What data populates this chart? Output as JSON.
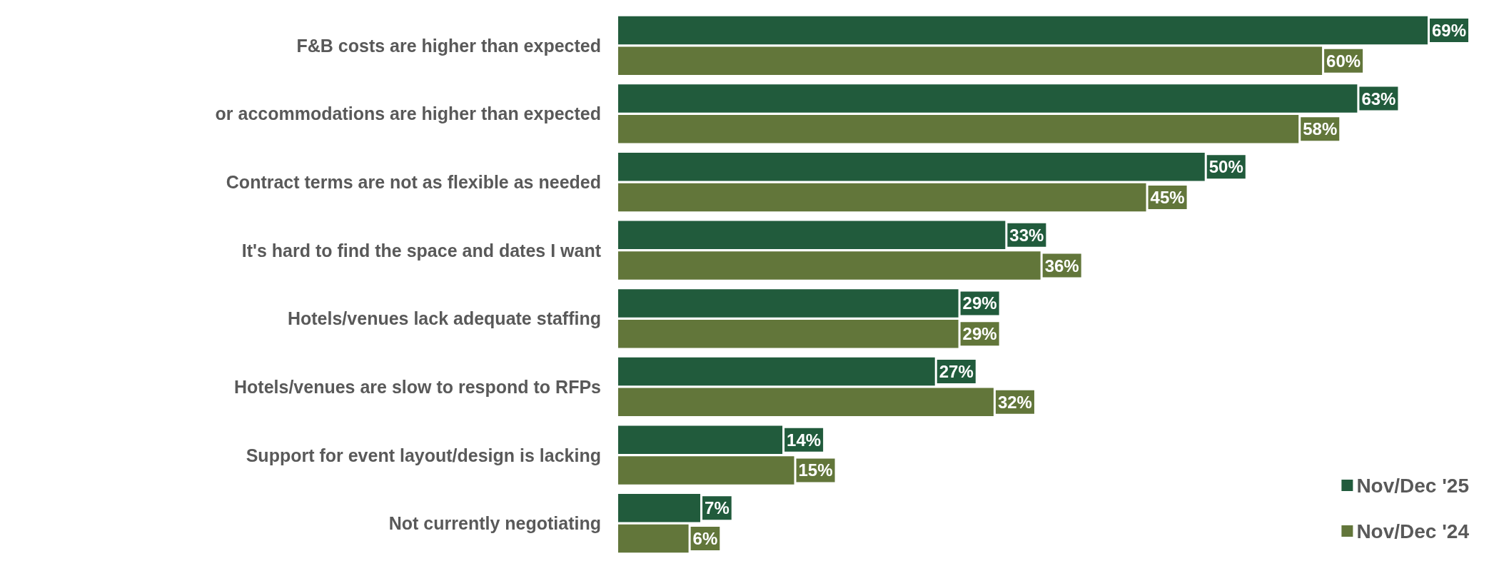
{
  "chart_data": {
    "type": "bar",
    "orientation": "horizontal",
    "legend": "bottom right",
    "categories": [
      "F&B costs are higher than expected",
      "or accommodations are higher than expected",
      "Contract terms are not as flexible as needed",
      "It's hard to find the space and dates I want",
      "Hotels/venues lack adequate staffing",
      "Hotels/venues are slow to respond to RFPs",
      "Support for event layout/design is lacking",
      "Not currently negotiating"
    ],
    "series": [
      {
        "name": "Nov/Dec '25",
        "color": "#215b3c",
        "values": [
          69,
          63,
          50,
          33,
          29,
          27,
          14,
          7
        ],
        "value_labels": [
          "69%",
          "63%",
          "50%",
          "33%",
          "29%",
          "27%",
          "14%",
          "7%"
        ]
      },
      {
        "name": "Nov/Dec '24",
        "color": "#62763a",
        "values": [
          60,
          58,
          45,
          36,
          29,
          32,
          15,
          6
        ],
        "value_labels": [
          "60%",
          "58%",
          "45%",
          "36%",
          "29%",
          "32%",
          "15%",
          "6%"
        ]
      }
    ]
  }
}
